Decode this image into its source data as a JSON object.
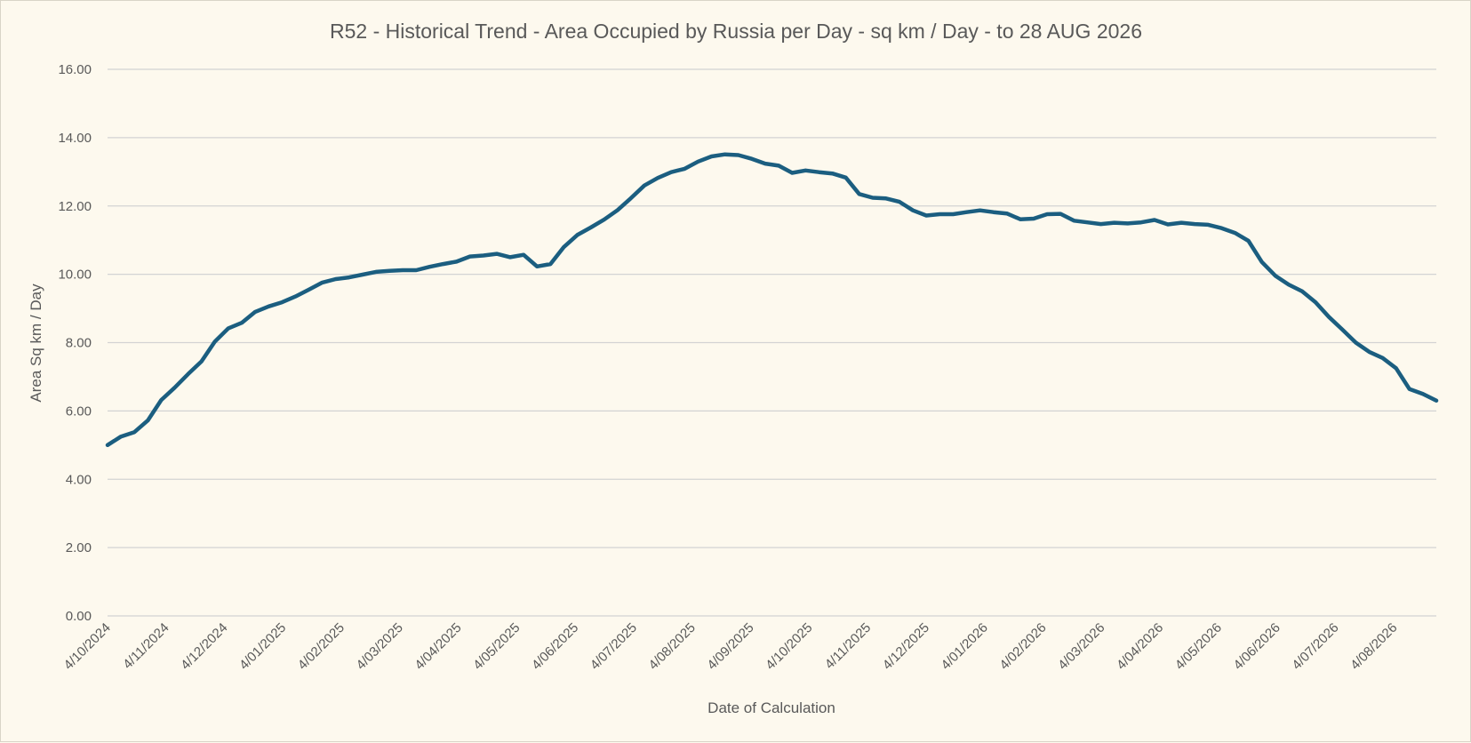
{
  "chart_data": {
    "type": "line",
    "title": "R52 - Historical Trend - Area Occupied by Russia per Day - sq km / Day - to 28 AUG 2026",
    "xlabel": "Date of Calculation",
    "ylabel": "Area Sq km / Day",
    "ylim": [
      0,
      16
    ],
    "yticks": [
      "0.00",
      "2.00",
      "4.00",
      "6.00",
      "8.00",
      "10.00",
      "12.00",
      "14.00",
      "16.00"
    ],
    "grid": true,
    "legend": "none",
    "x_tick_labels": [
      "4/10/2024",
      "4/11/2024",
      "4/12/2024",
      "4/01/2025",
      "4/02/2025",
      "4/03/2025",
      "4/04/2025",
      "4/05/2025",
      "4/06/2025",
      "4/07/2025",
      "4/08/2025",
      "4/09/2025",
      "4/10/2025",
      "4/11/2025",
      "4/12/2025",
      "4/01/2026",
      "4/02/2026",
      "4/03/2026",
      "4/04/2026",
      "4/05/2026",
      "4/06/2026",
      "4/07/2026",
      "4/08/2026"
    ],
    "series": [
      {
        "color": "#1b5e80",
        "values": [
          5.0,
          5.25,
          5.38,
          5.72,
          6.32,
          6.68,
          7.08,
          7.45,
          8.03,
          8.42,
          8.58,
          8.9,
          9.06,
          9.18,
          9.35,
          9.55,
          9.76,
          9.86,
          9.91,
          9.99,
          10.07,
          10.1,
          10.12,
          10.12,
          10.22,
          10.3,
          10.37,
          10.52,
          10.55,
          10.6,
          10.5,
          10.57,
          10.23,
          10.3,
          10.8,
          11.15,
          11.37,
          11.6,
          11.88,
          12.23,
          12.6,
          12.82,
          12.99,
          13.09,
          13.3,
          13.45,
          13.51,
          13.49,
          13.38,
          13.24,
          13.18,
          12.97,
          13.04,
          12.99,
          12.95,
          12.83,
          12.35,
          12.24,
          12.22,
          12.12,
          11.87,
          11.72,
          11.76,
          11.76,
          11.82,
          11.87,
          11.82,
          11.78,
          11.61,
          11.63,
          11.76,
          11.77,
          11.57,
          11.52,
          11.47,
          11.51,
          11.49,
          11.52,
          11.59,
          11.46,
          11.51,
          11.47,
          11.45,
          11.35,
          11.21,
          10.98,
          10.36,
          9.96,
          9.7,
          9.5,
          9.18,
          8.75,
          8.38,
          8.0,
          7.73,
          7.55,
          7.25,
          6.64,
          6.5,
          6.3
        ]
      }
    ]
  }
}
